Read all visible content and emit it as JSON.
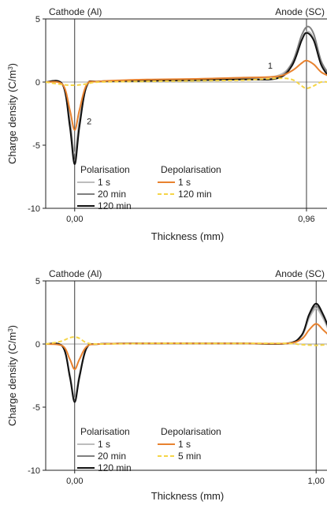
{
  "chart_data": [
    {
      "type": "line",
      "xlabel": "Thickness (mm)",
      "ylabel": "Charge density (C/m³)",
      "ylabel_base": "Charge density (C/m",
      "ylabel_sup": "3",
      "ylabel_close": ")",
      "xlim": [
        -0.12,
        1.12
      ],
      "ylim": [
        -10,
        5
      ],
      "y_ticks": [
        5,
        0,
        -5,
        -10
      ],
      "y_tick_labels": [
        "5",
        "0",
        "-5",
        "-10"
      ],
      "x_ticks": [
        0.0,
        0.96
      ],
      "x_tick_labels": [
        "0,00",
        "0,96"
      ],
      "electrode_left_x": 0.0,
      "electrode_right_x": 0.96,
      "label_left": "Cathode (Al)",
      "label_right": "Anode (SC)",
      "annotations": [
        {
          "text": "1",
          "x": 0.8,
          "y": 1.05
        },
        {
          "text": "2",
          "x": 0.05,
          "y": -3.35
        }
      ],
      "legend": {
        "group1_title": "Polarisation",
        "group2_title": "Depolarisation",
        "group1": [
          "1 s",
          "20 min",
          "120 min"
        ],
        "group2": [
          "1 s",
          "120 min"
        ]
      },
      "series": [
        {
          "name": "1 s",
          "group": "Polarisation",
          "color": "#bdbdbd",
          "dash": false,
          "points": [
            [
              -0.12,
              0
            ],
            [
              -0.05,
              -0.2
            ],
            [
              -0.02,
              -3.0
            ],
            [
              0.0,
              -5.6
            ],
            [
              0.02,
              -3.0
            ],
            [
              0.05,
              -0.3
            ],
            [
              0.1,
              0.05
            ],
            [
              0.3,
              0.15
            ],
            [
              0.5,
              0.25
            ],
            [
              0.7,
              0.35
            ],
            [
              0.84,
              0.5
            ],
            [
              0.9,
              1.5
            ],
            [
              0.94,
              3.3
            ],
            [
              0.965,
              4.0
            ],
            [
              0.99,
              3.4
            ],
            [
              1.02,
              1.5
            ],
            [
              1.05,
              0.6
            ]
          ]
        },
        {
          "name": "20 min",
          "group": "Polarisation",
          "color": "#7f7f7f",
          "dash": false,
          "points": [
            [
              -0.12,
              0
            ],
            [
              -0.05,
              -0.2
            ],
            [
              -0.02,
              -3.3
            ],
            [
              0.0,
              -6.2
            ],
            [
              0.02,
              -3.3
            ],
            [
              0.05,
              -0.3
            ],
            [
              0.1,
              0.05
            ],
            [
              0.3,
              0.1
            ],
            [
              0.5,
              0.2
            ],
            [
              0.7,
              0.25
            ],
            [
              0.84,
              0.35
            ],
            [
              0.9,
              1.5
            ],
            [
              0.94,
              3.7
            ],
            [
              0.965,
              4.4
            ],
            [
              0.99,
              3.8
            ],
            [
              1.02,
              1.7
            ],
            [
              1.05,
              0.7
            ]
          ]
        },
        {
          "name": "120 min",
          "group": "Polarisation",
          "color": "#111111",
          "dash": false,
          "points": [
            [
              -0.12,
              0
            ],
            [
              -0.05,
              -0.2
            ],
            [
              -0.02,
              -3.5
            ],
            [
              0.0,
              -6.5
            ],
            [
              0.02,
              -3.5
            ],
            [
              0.05,
              -0.3
            ],
            [
              0.1,
              0.05
            ],
            [
              0.3,
              0.1
            ],
            [
              0.5,
              0.15
            ],
            [
              0.7,
              0.2
            ],
            [
              0.84,
              0.3
            ],
            [
              0.9,
              1.3
            ],
            [
              0.94,
              3.3
            ],
            [
              0.96,
              3.9
            ],
            [
              0.99,
              3.3
            ],
            [
              1.02,
              1.4
            ],
            [
              1.05,
              0.5
            ]
          ]
        },
        {
          "name": "1 s",
          "group": "Depolarisation",
          "color": "#e8822f",
          "dash": false,
          "points": [
            [
              -0.12,
              0
            ],
            [
              -0.05,
              -0.2
            ],
            [
              -0.02,
              -2.2
            ],
            [
              0.0,
              -3.8
            ],
            [
              0.02,
              -2.2
            ],
            [
              0.05,
              -0.2
            ],
            [
              0.1,
              0.05
            ],
            [
              0.3,
              0.2
            ],
            [
              0.5,
              0.25
            ],
            [
              0.7,
              0.35
            ],
            [
              0.84,
              0.45
            ],
            [
              0.9,
              0.9
            ],
            [
              0.94,
              1.5
            ],
            [
              0.96,
              1.7
            ],
            [
              0.99,
              1.4
            ],
            [
              1.02,
              0.8
            ],
            [
              1.05,
              0.5
            ]
          ]
        },
        {
          "name": "120 min",
          "group": "Depolarisation",
          "color": "#f5d547",
          "dash": true,
          "points": [
            [
              -0.12,
              0
            ],
            [
              -0.05,
              -0.2
            ],
            [
              0.0,
              -0.25
            ],
            [
              0.05,
              -0.15
            ],
            [
              0.1,
              0.0
            ],
            [
              0.3,
              0.05
            ],
            [
              0.5,
              0.1
            ],
            [
              0.7,
              0.15
            ],
            [
              0.84,
              0.3
            ],
            [
              0.9,
              0.2
            ],
            [
              0.94,
              -0.3
            ],
            [
              0.96,
              -0.5
            ],
            [
              0.99,
              -0.3
            ],
            [
              1.02,
              0.0
            ],
            [
              1.05,
              0.0
            ]
          ]
        }
      ]
    },
    {
      "type": "line",
      "xlabel": "Thickness (mm)",
      "ylabel": "Charge density (C/m³)",
      "ylabel_base": "Charge density (C/m",
      "ylabel_sup": "3",
      "ylabel_close": ")",
      "xlim": [
        -0.12,
        1.12
      ],
      "ylim": [
        -10,
        5
      ],
      "y_ticks": [
        5,
        0,
        -5,
        -10
      ],
      "y_tick_labels": [
        "5",
        "0",
        "-5",
        "-10"
      ],
      "x_ticks": [
        0.0,
        1.0
      ],
      "x_tick_labels": [
        "0,00",
        "1,00"
      ],
      "electrode_left_x": 0.0,
      "electrode_right_x": 1.0,
      "label_left": "Cathode (Al)",
      "label_right": "Anode (SC)",
      "annotations": [],
      "legend": {
        "group1_title": "Polarisation",
        "group2_title": "Depolarisation",
        "group1": [
          "1 s",
          "20 min",
          "120 min"
        ],
        "group2": [
          "1 s",
          "5 min"
        ]
      },
      "series": [
        {
          "name": "1 s",
          "group": "Polarisation",
          "color": "#bdbdbd",
          "dash": false,
          "points": [
            [
              -0.12,
              0
            ],
            [
              -0.05,
              -0.2
            ],
            [
              -0.02,
              -2.4
            ],
            [
              0.0,
              -4.3
            ],
            [
              0.02,
              -2.4
            ],
            [
              0.05,
              -0.3
            ],
            [
              0.1,
              0.0
            ],
            [
              0.3,
              0.05
            ],
            [
              0.5,
              0.05
            ],
            [
              0.7,
              0.05
            ],
            [
              0.88,
              0.05
            ],
            [
              0.94,
              0.6
            ],
            [
              0.97,
              2.0
            ],
            [
              1.0,
              2.8
            ],
            [
              1.03,
              2.0
            ],
            [
              1.06,
              0.8
            ],
            [
              1.09,
              0.4
            ]
          ]
        },
        {
          "name": "20 min",
          "group": "Polarisation",
          "color": "#7f7f7f",
          "dash": false,
          "points": [
            [
              -0.12,
              0
            ],
            [
              -0.05,
              -0.2
            ],
            [
              -0.02,
              -2.5
            ],
            [
              0.0,
              -4.5
            ],
            [
              0.02,
              -2.5
            ],
            [
              0.05,
              -0.3
            ],
            [
              0.1,
              0.0
            ],
            [
              0.3,
              0.05
            ],
            [
              0.5,
              0.05
            ],
            [
              0.7,
              0.05
            ],
            [
              0.88,
              0.05
            ],
            [
              0.94,
              0.7
            ],
            [
              0.97,
              2.2
            ],
            [
              1.0,
              3.0
            ],
            [
              1.03,
              2.2
            ],
            [
              1.06,
              0.9
            ],
            [
              1.09,
              0.4
            ]
          ]
        },
        {
          "name": "120 min",
          "group": "Polarisation",
          "color": "#111111",
          "dash": false,
          "points": [
            [
              -0.12,
              0
            ],
            [
              -0.05,
              -0.2
            ],
            [
              -0.02,
              -2.6
            ],
            [
              0.0,
              -4.6
            ],
            [
              0.02,
              -2.6
            ],
            [
              0.05,
              -0.3
            ],
            [
              0.1,
              0.0
            ],
            [
              0.3,
              0.05
            ],
            [
              0.5,
              0.05
            ],
            [
              0.7,
              0.05
            ],
            [
              0.88,
              0.05
            ],
            [
              0.94,
              0.7
            ],
            [
              0.97,
              2.3
            ],
            [
              1.0,
              3.2
            ],
            [
              1.03,
              2.3
            ],
            [
              1.06,
              1.0
            ],
            [
              1.09,
              0.5
            ]
          ]
        },
        {
          "name": "1 s",
          "group": "Depolarisation",
          "color": "#e8822f",
          "dash": false,
          "points": [
            [
              -0.12,
              0
            ],
            [
              -0.05,
              -0.15
            ],
            [
              -0.02,
              -1.2
            ],
            [
              0.0,
              -2.0
            ],
            [
              0.02,
              -1.2
            ],
            [
              0.05,
              -0.2
            ],
            [
              0.1,
              0.0
            ],
            [
              0.3,
              0.05
            ],
            [
              0.5,
              0.05
            ],
            [
              0.7,
              0.05
            ],
            [
              0.88,
              0.05
            ],
            [
              0.94,
              0.4
            ],
            [
              0.97,
              1.1
            ],
            [
              1.0,
              1.6
            ],
            [
              1.03,
              1.1
            ],
            [
              1.06,
              0.6
            ],
            [
              1.09,
              0.3
            ]
          ]
        },
        {
          "name": "5 min",
          "group": "Depolarisation",
          "color": "#f5d547",
          "dash": true,
          "points": [
            [
              -0.12,
              0
            ],
            [
              -0.06,
              0.2
            ],
            [
              -0.02,
              0.5
            ],
            [
              0.0,
              0.55
            ],
            [
              0.02,
              0.45
            ],
            [
              0.05,
              0.1
            ],
            [
              0.1,
              0.0
            ],
            [
              0.3,
              0.05
            ],
            [
              0.5,
              0.05
            ],
            [
              0.7,
              0.05
            ],
            [
              0.88,
              0.05
            ],
            [
              0.94,
              -0.05
            ],
            [
              1.0,
              -0.1
            ],
            [
              1.05,
              -0.05
            ],
            [
              1.09,
              0.0
            ]
          ]
        }
      ]
    }
  ]
}
